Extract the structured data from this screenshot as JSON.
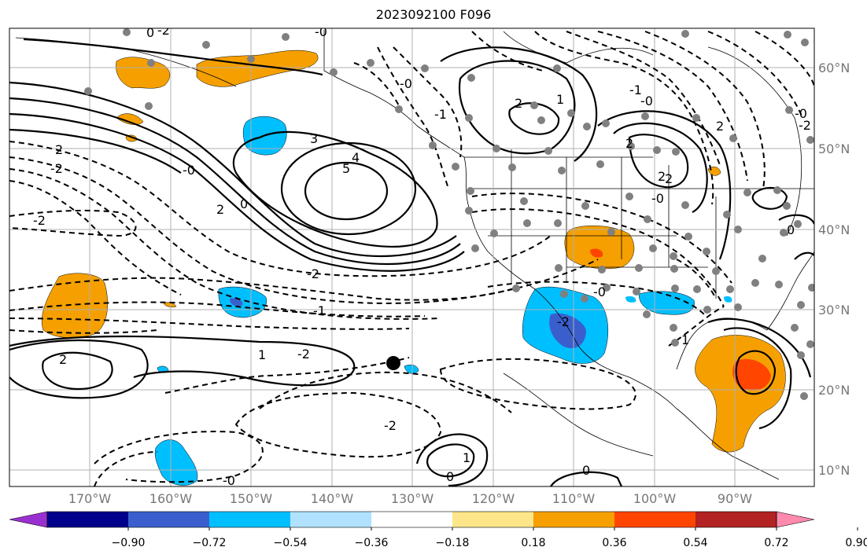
{
  "title": "2023092100 F096",
  "map": {
    "lon_ticks": [
      "170°W",
      "160°W",
      "150°W",
      "140°W",
      "130°W",
      "120°W",
      "110°W",
      "100°W",
      "90°W"
    ],
    "lat_ticks": [
      "60°N",
      "50°N",
      "40°N",
      "30°N",
      "20°N",
      "10°N"
    ],
    "contour_labels": [
      "2",
      "3",
      "-0",
      "0",
      "4",
      "5",
      "2",
      "0",
      "-2",
      "-2",
      "-2",
      "2",
      "-1",
      "1",
      "-2",
      "-2",
      "-0",
      "-2",
      "1",
      "2",
      "-0",
      "2",
      "-0",
      "-0",
      "0",
      "0",
      "1",
      "2",
      "-2",
      "-0",
      "-1",
      "2",
      "-0",
      "-2",
      "0",
      "1",
      "2",
      "-1",
      "-0"
    ]
  },
  "colorbar": {
    "ticks": [
      "−0.90",
      "−0.72",
      "−0.54",
      "−0.36",
      "−0.18",
      "0.18",
      "0.36",
      "0.54",
      "0.72",
      "0.90"
    ],
    "colors": [
      "#9b30d0",
      "#00008b",
      "#3a5fcd",
      "#00bfff",
      "#b0e2ff",
      "#ffffff",
      "#fde68a",
      "#f5a000",
      "#ff4500",
      "#b22222",
      "#ff8aae"
    ]
  }
}
